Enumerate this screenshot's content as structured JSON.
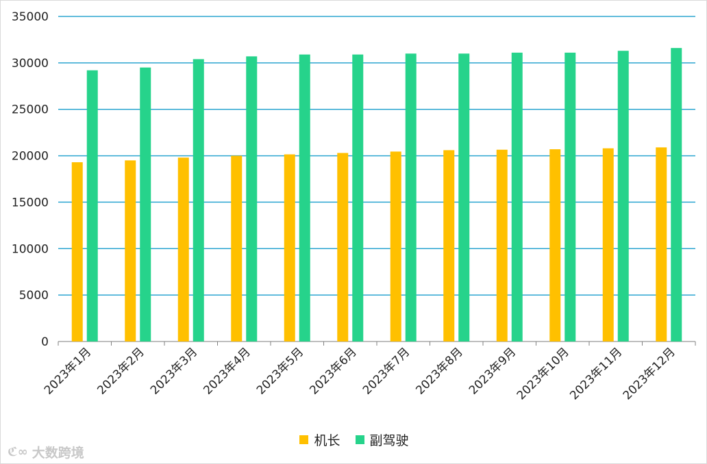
{
  "colors": {
    "captain": "#FFC000",
    "first_officer": "#26D38B",
    "grid": "#2BA5D0",
    "axis": "#7f7f7f"
  },
  "chart_data": {
    "type": "bar",
    "categories": [
      "2023年1月",
      "2023年2月",
      "2023年3月",
      "2023年4月",
      "2023年5月",
      "2023年6月",
      "2023年7月",
      "2023年8月",
      "2023年9月",
      "2023年10月",
      "2023年11月",
      "2023年12月"
    ],
    "series": [
      {
        "name": "机长",
        "values": [
          19300,
          19500,
          19800,
          20000,
          20150,
          20300,
          20450,
          20600,
          20650,
          20700,
          20800,
          20900
        ]
      },
      {
        "name": "副驾驶",
        "values": [
          29200,
          29500,
          30400,
          30700,
          30900,
          30900,
          31000,
          31000,
          31100,
          31100,
          31300,
          31600
        ]
      }
    ],
    "ylim": [
      0,
      35000
    ],
    "yticks": [
      0,
      5000,
      10000,
      15000,
      20000,
      25000,
      30000,
      35000
    ],
    "grid": true,
    "legend_position": "bottom"
  },
  "legend": {
    "items": [
      {
        "label": "机长"
      },
      {
        "label": "副驾驶"
      }
    ]
  },
  "watermark": {
    "text": "大数跨境"
  }
}
